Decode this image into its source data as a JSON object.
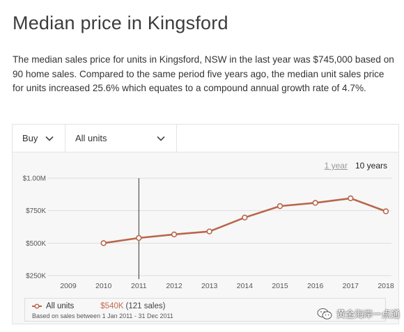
{
  "page": {
    "title": "Median price in Kingsford",
    "summary": "The median sales price for units in Kingsford, NSW in the last year was $745,000 based on 90 home sales. Compared to the same period five years ago, the median unit sales price for units increased 25.6% which equates to a compound annual growth rate of 4.7%."
  },
  "filters": {
    "mode": "Buy",
    "property_type": "All units"
  },
  "range_toggle": {
    "options": [
      "1 year",
      "10 years"
    ],
    "selected": "10 years"
  },
  "legend": {
    "series_label": "All units",
    "value": "$540K",
    "count": "(121 sales)",
    "note": "Based on sales between 1 Jan 2011 - 31 Dec 2011"
  },
  "watermark": {
    "text": "黄金海岸一点通"
  },
  "colors": {
    "series": "#b9664b",
    "value_text": "#c46a4f",
    "grid": "#dedede"
  },
  "icons": {
    "filter_chevron": "chevron-down-icon",
    "legend_marker": "line-with-circle-icon",
    "watermark": "wechat-icon"
  },
  "chart_data": {
    "type": "line",
    "title": "",
    "xlabel": "",
    "ylabel": "",
    "x": [
      "2009",
      "2010",
      "2011",
      "2012",
      "2013",
      "2014",
      "2015",
      "2016",
      "2017",
      "2018"
    ],
    "series": [
      {
        "name": "All units",
        "values": [
          null,
          500000,
          540000,
          567000,
          590000,
          697000,
          785000,
          810000,
          845000,
          745000
        ]
      }
    ],
    "ylim": [
      250000,
      1000000
    ],
    "yticks": [
      1000000,
      750000,
      500000,
      250000
    ],
    "ytick_labels": [
      "$1.00M",
      "$750K",
      "$500K",
      "$250K"
    ],
    "highlight_x": "2011",
    "grid": "horizontal",
    "legend": "bottom"
  }
}
